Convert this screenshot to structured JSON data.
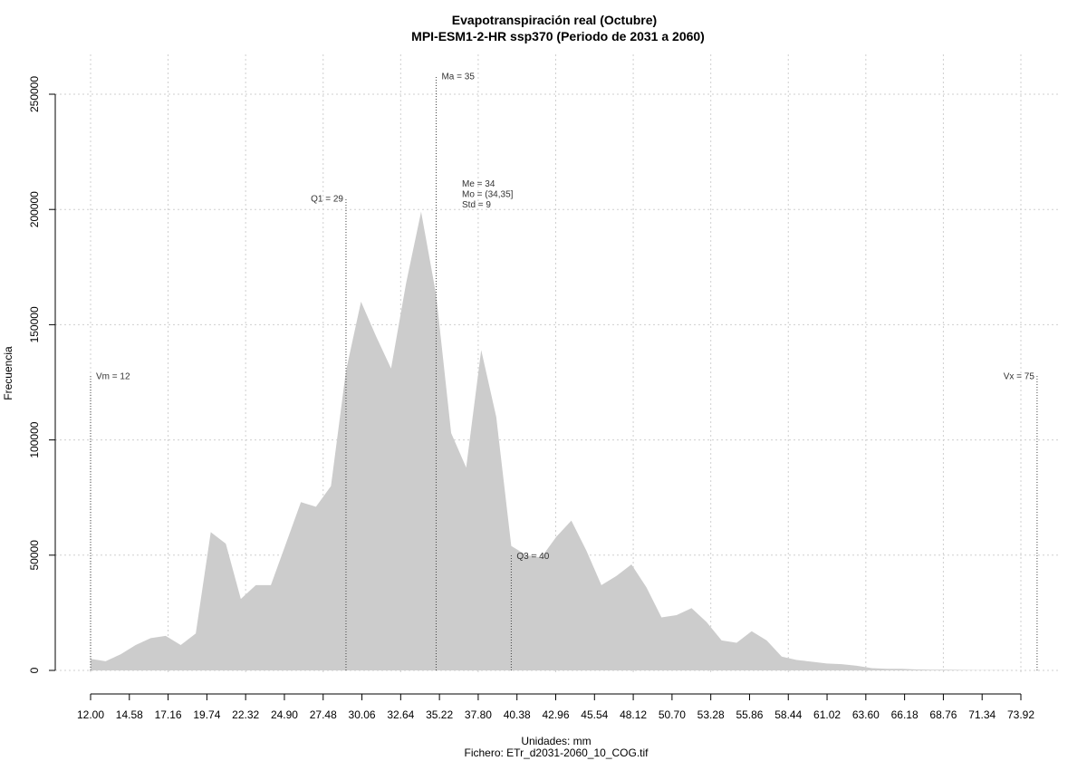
{
  "chart_data": {
    "type": "area",
    "title": "Evapotranspiración real (Octubre)",
    "subtitle": "MPI-ESM1-2-HR ssp370 (Periodo de 2031 a 2060)",
    "xlabel": "Unidades: mm",
    "caption": "Fichero: ETr_d2031-2060_10_COG.tif",
    "ylabel": "Frecuencia",
    "xlim": [
      12,
      73.92
    ],
    "ylim": [
      0,
      250000
    ],
    "x_ticks": [
      "12.00",
      "14.58",
      "17.16",
      "19.74",
      "22.32",
      "24.90",
      "27.48",
      "30.06",
      "32.64",
      "35.22",
      "37.80",
      "40.38",
      "42.96",
      "45.54",
      "48.12",
      "50.70",
      "53.28",
      "55.86",
      "58.44",
      "61.02",
      "63.60",
      "66.18",
      "68.76",
      "71.34",
      "73.92"
    ],
    "y_ticks": [
      0,
      50000,
      100000,
      150000,
      200000,
      250000
    ],
    "y_tick_labels": [
      "0",
      "50000",
      "100000",
      "150000",
      "200000",
      "250000"
    ],
    "fill_color": "#cccccc",
    "grid": true,
    "x": [
      12.0,
      13.0,
      14.0,
      15.0,
      16.0,
      17.0,
      18.0,
      19.0,
      20.0,
      21.0,
      22.0,
      23.0,
      24.0,
      25.0,
      26.0,
      27.0,
      28.0,
      29.0,
      30.0,
      31.0,
      32.0,
      33.0,
      34.0,
      35.0,
      36.0,
      37.0,
      38.0,
      39.0,
      40.0,
      41.0,
      42.0,
      43.0,
      44.0,
      45.0,
      46.0,
      47.0,
      48.0,
      49.0,
      50.0,
      51.0,
      52.0,
      53.0,
      54.0,
      55.0,
      56.0,
      57.0,
      58.0,
      59.0,
      60.0,
      61.0,
      62.0,
      63.0,
      64.0,
      65.0,
      66.0,
      67.0,
      68.0,
      69.0,
      70.0,
      71.0,
      72.0,
      73.0,
      74.0
    ],
    "values": [
      5000,
      4000,
      7000,
      11000,
      14000,
      15000,
      11000,
      16000,
      60000,
      55000,
      31000,
      37000,
      37000,
      55000,
      73000,
      71000,
      80000,
      130000,
      160000,
      145000,
      131000,
      168000,
      199000,
      163000,
      103000,
      88000,
      139000,
      110000,
      54000,
      50000,
      49000,
      58000,
      65000,
      52000,
      37000,
      41000,
      46000,
      36000,
      23000,
      24000,
      27000,
      21000,
      13000,
      12000,
      17000,
      13000,
      6000,
      4500,
      3800,
      3000,
      2700,
      2000,
      1000,
      700,
      700,
      400,
      300,
      300,
      200,
      100,
      100,
      50,
      0
    ],
    "annotations": [
      {
        "label": "Vm = 12",
        "x": 12,
        "line_top": 128000,
        "text_y": 128000,
        "side": "right"
      },
      {
        "label": "Q1 = 29",
        "x": 29,
        "line_top": 205000,
        "text_y": 205000,
        "side": "left"
      },
      {
        "label": "Ma = 35",
        "x": 35,
        "line_top": 258000,
        "text_y": 258000,
        "side": "right"
      },
      {
        "label": "Q3 = 40",
        "x": 40,
        "line_top": 50000,
        "text_y": 50000,
        "side": "right"
      },
      {
        "label": "Vx = 75",
        "x": 75,
        "line_top": 128000,
        "text_y": 128000,
        "side": "left"
      }
    ],
    "stats_text": [
      "Me = 34",
      "Mo = (34,35]",
      "Std = 9"
    ]
  }
}
